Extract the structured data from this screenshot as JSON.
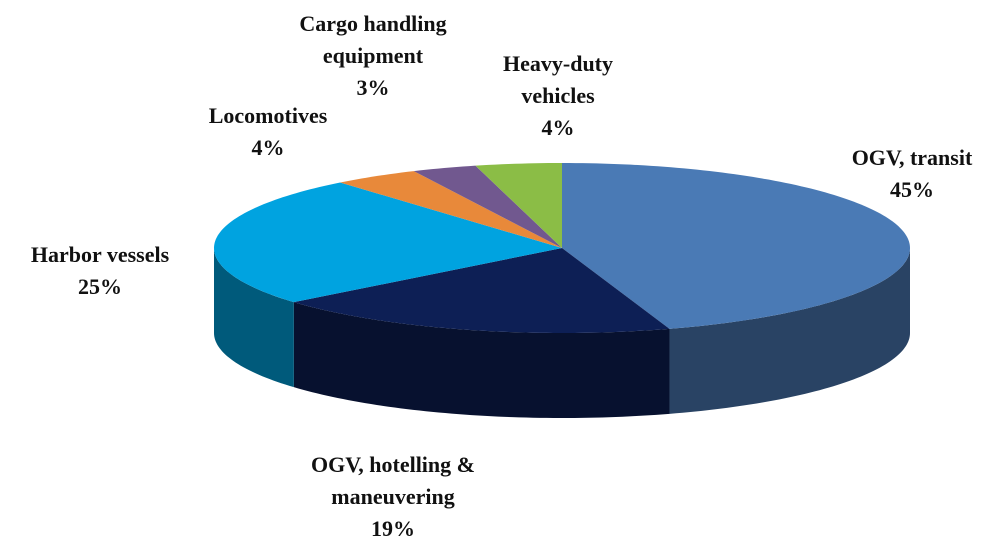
{
  "chart_data": {
    "type": "pie3d",
    "categories": [
      "OGV, transit",
      "OGV, hotelling & maneuvering",
      "Harbor vessels",
      "Locomotives",
      "Cargo handling equipment",
      "Heavy-duty vehicles"
    ],
    "values": [
      45,
      19,
      25,
      4,
      3,
      4
    ],
    "value_labels": [
      "45%",
      "19%",
      "25%",
      "4%",
      "3%",
      "4%"
    ],
    "colors": [
      "#4a7ab5",
      "#0d1f55",
      "#00a3e0",
      "#e8893a",
      "#71588f",
      "#8bbd46"
    ]
  }
}
